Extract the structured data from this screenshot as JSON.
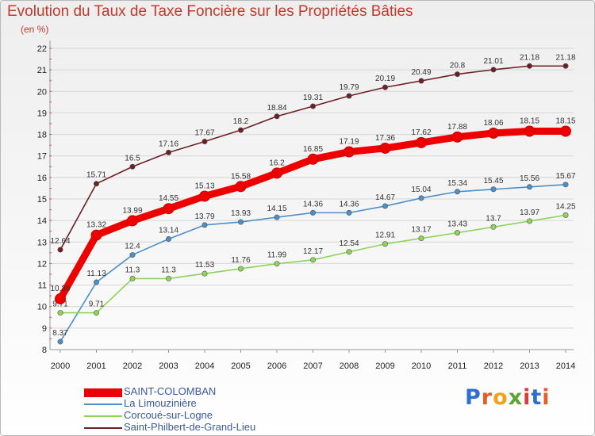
{
  "title": "Evolution du Taux de Taxe Foncière sur les Propriétés Bâties",
  "unit": "(en %)",
  "logo": "Proxiti",
  "chart_data": {
    "type": "line",
    "title": "Evolution du Taux de Taxe Foncière sur les Propriétés Bâties",
    "ylabel": "(en %)",
    "xlabel": "",
    "ylim": [
      8,
      22
    ],
    "yticks": [
      "8",
      "9",
      "10",
      "11",
      "12",
      "13",
      "14",
      "15",
      "16",
      "17",
      "18",
      "19",
      "20",
      "21",
      "22"
    ],
    "categories": [
      "2000",
      "2001",
      "2002",
      "2003",
      "2004",
      "2005",
      "2006",
      "2007",
      "2008",
      "2009",
      "2010",
      "2011",
      "2012",
      "2013",
      "2014"
    ],
    "series": [
      {
        "name": "Saint-Philbert-de-Grand-Lieu",
        "color": "#6e1f25",
        "values": [
          12.64,
          15.71,
          16.5,
          17.16,
          17.67,
          18.2,
          18.84,
          19.31,
          19.79,
          20.19,
          20.49,
          20.8,
          21.01,
          21.18,
          21.18
        ],
        "labels": [
          "12.64",
          "15.71",
          "16.5",
          "17.16",
          "17.67",
          "18.2",
          "18.84",
          "19.31",
          "19.79",
          "20.19",
          "20.49",
          "20.8",
          "21.01",
          "21.18",
          "21.18"
        ]
      },
      {
        "name": "La Limouzinière",
        "color": "#4d8fc8",
        "values": [
          8.37,
          11.13,
          12.4,
          13.14,
          13.79,
          13.93,
          14.15,
          14.36,
          14.36,
          14.67,
          15.04,
          15.34,
          15.45,
          15.56,
          15.67
        ],
        "labels": [
          "8.37",
          "11.13",
          "12.4",
          "13.14",
          "13.79",
          "13.93",
          "14.15",
          "14.36",
          "14.36",
          "14.67",
          "15.04",
          "15.34",
          "15.45",
          "15.56",
          "15.67"
        ]
      },
      {
        "name": "Corcoué-sur-Logne",
        "color": "#8ed35a",
        "values": [
          9.71,
          9.71,
          11.3,
          11.3,
          11.53,
          11.76,
          11.99,
          12.17,
          12.54,
          12.91,
          13.17,
          13.43,
          13.7,
          13.97,
          14.25
        ],
        "labels": [
          "9.71",
          "9.71",
          "11.3",
          "11.3",
          "11.53",
          "11.76",
          "11.99",
          "12.17",
          "12.54",
          "12.91",
          "13.17",
          "13.43",
          "13.7",
          "13.97",
          "14.25"
        ]
      },
      {
        "name": "SAINT-COLOMBAN",
        "color": "#ee0000",
        "values": [
          10.36,
          13.32,
          13.99,
          14.55,
          15.13,
          15.58,
          16.2,
          16.85,
          17.19,
          17.36,
          17.62,
          17.88,
          18.06,
          18.15,
          18.15
        ],
        "labels": [
          "10.36",
          "13.32",
          "13.99",
          "14.55",
          "15.13",
          "15.58",
          "16.2",
          "16.85",
          "17.19",
          "17.36",
          "17.62",
          "17.88",
          "18.06",
          "18.15",
          "18.15"
        ]
      }
    ],
    "legend": [
      {
        "name": "SAINT-COLOMBAN",
        "color": "#ee0000",
        "thick": true
      },
      {
        "name": "La Limouzinière",
        "color": "#4d8fc8",
        "thick": false
      },
      {
        "name": "Corcoué-sur-Logne",
        "color": "#8ed35a",
        "thick": false
      },
      {
        "name": "Saint-Philbert-de-Grand-Lieu",
        "color": "#6e1f25",
        "thick": false
      }
    ],
    "legend_position": "bottom-left"
  }
}
